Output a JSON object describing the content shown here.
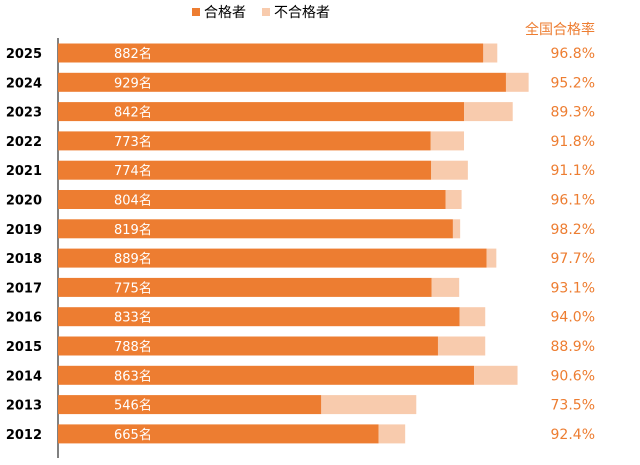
{
  "chart_data": {
    "type": "bar",
    "orientation": "horizontal",
    "stacked": true,
    "categories": [
      "2025",
      "2024",
      "2023",
      "2022",
      "2021",
      "2020",
      "2019",
      "2018",
      "2017",
      "2016",
      "2015",
      "2014",
      "2013",
      "2012"
    ],
    "value_suffix": "名",
    "series": [
      {
        "name": "合格者",
        "color": "#ED7D31",
        "values": [
          882,
          929,
          842,
          773,
          774,
          804,
          819,
          889,
          775,
          833,
          788,
          863,
          546,
          665
        ]
      },
      {
        "name": "不合格者",
        "color": "#F8CBAD",
        "values": [
          29,
          47,
          101,
          69,
          76,
          33,
          15,
          20,
          57,
          53,
          98,
          90,
          197,
          55
        ]
      }
    ],
    "rate_header": "全国合格率",
    "rates": [
      "96.8%",
      "95.2%",
      "89.3%",
      "91.8%",
      "91.1%",
      "96.1%",
      "98.2%",
      "97.7%",
      "93.1%",
      "94.0%",
      "88.9%",
      "90.6%",
      "73.5%",
      "92.4%"
    ],
    "rate_color": "#ED7D31",
    "xlim": [
      0,
      1000
    ],
    "legend_position": "top",
    "grid": false
  }
}
